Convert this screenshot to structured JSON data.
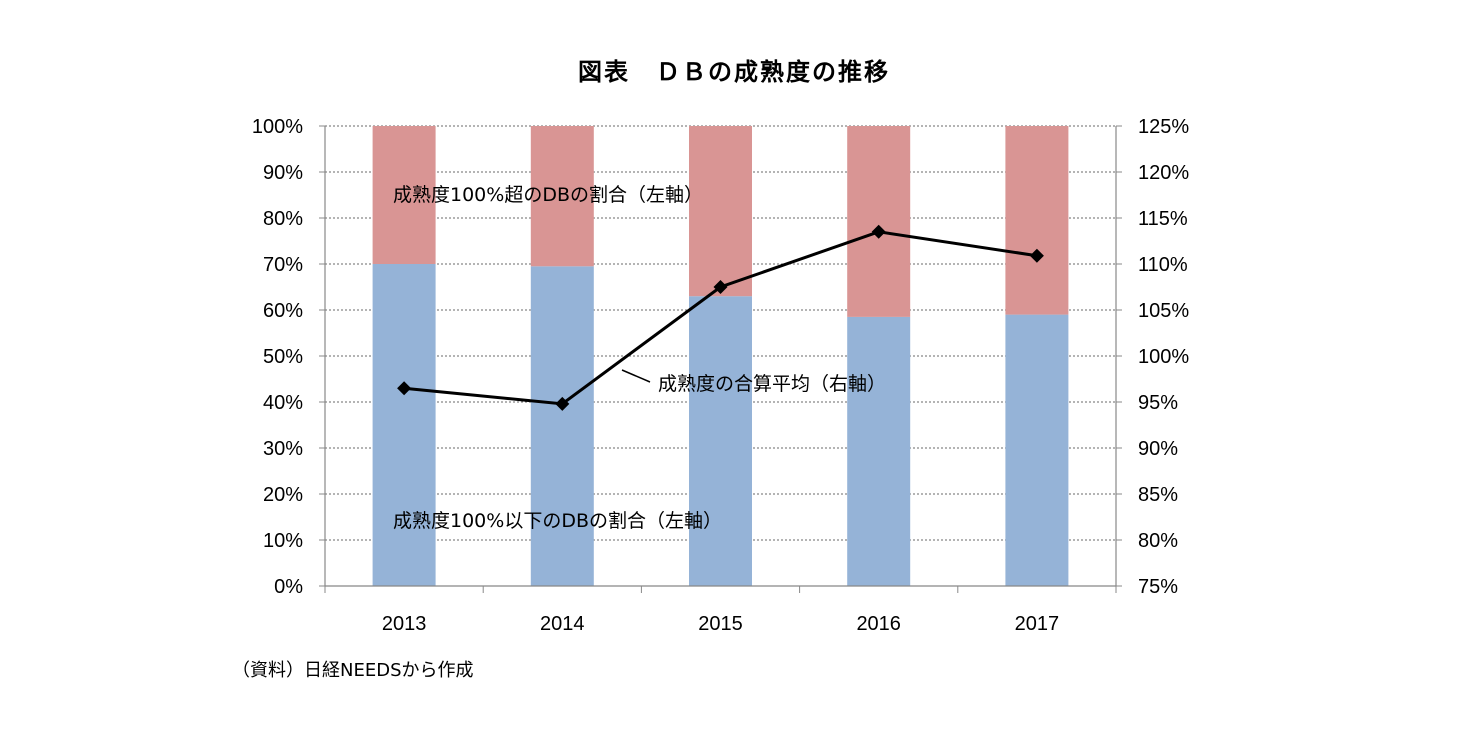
{
  "chart_data": {
    "type": "bar+line",
    "title": "図表　ＤＢの成熟度の推移",
    "categories": [
      "2013",
      "2014",
      "2015",
      "2016",
      "2017"
    ],
    "series": [
      {
        "name": "成熟度100%以下のDBの割合（左軸）",
        "type": "stacked-bar",
        "axis": "left",
        "color": "#95b3d7",
        "values": [
          70,
          69.5,
          63,
          58.5,
          59
        ]
      },
      {
        "name": "成熟度100%超のDBの割合（左軸）",
        "type": "stacked-bar",
        "axis": "left",
        "color": "#d99594",
        "values": [
          30,
          30.5,
          37,
          41.5,
          41
        ]
      },
      {
        "name": "成熟度の合算平均（右軸）",
        "type": "line",
        "axis": "right",
        "color": "#000000",
        "marker": "diamond",
        "values": [
          96.5,
          94.8,
          107.5,
          113.5,
          110.9
        ]
      }
    ],
    "left_axis": {
      "range": [
        0,
        100
      ],
      "step": 10,
      "ticks": [
        "0%",
        "10%",
        "20%",
        "30%",
        "40%",
        "50%",
        "60%",
        "70%",
        "80%",
        "90%",
        "100%"
      ]
    },
    "right_axis": {
      "range": [
        75,
        125
      ],
      "step": 5,
      "ticks": [
        "75%",
        "80%",
        "85%",
        "90%",
        "95%",
        "100%",
        "105%",
        "110%",
        "115%",
        "120%",
        "125%"
      ]
    },
    "grid": "horizontal-dotted",
    "annotations": {
      "upper_bar_label": "成熟度100%超のDBの割合（左軸）",
      "lower_bar_label": "成熟度100%以下のDBの割合（左軸）",
      "line_label": "成熟度の合算平均（右軸）"
    }
  },
  "footer": {
    "source": "（資料）日経NEEDSから作成"
  }
}
